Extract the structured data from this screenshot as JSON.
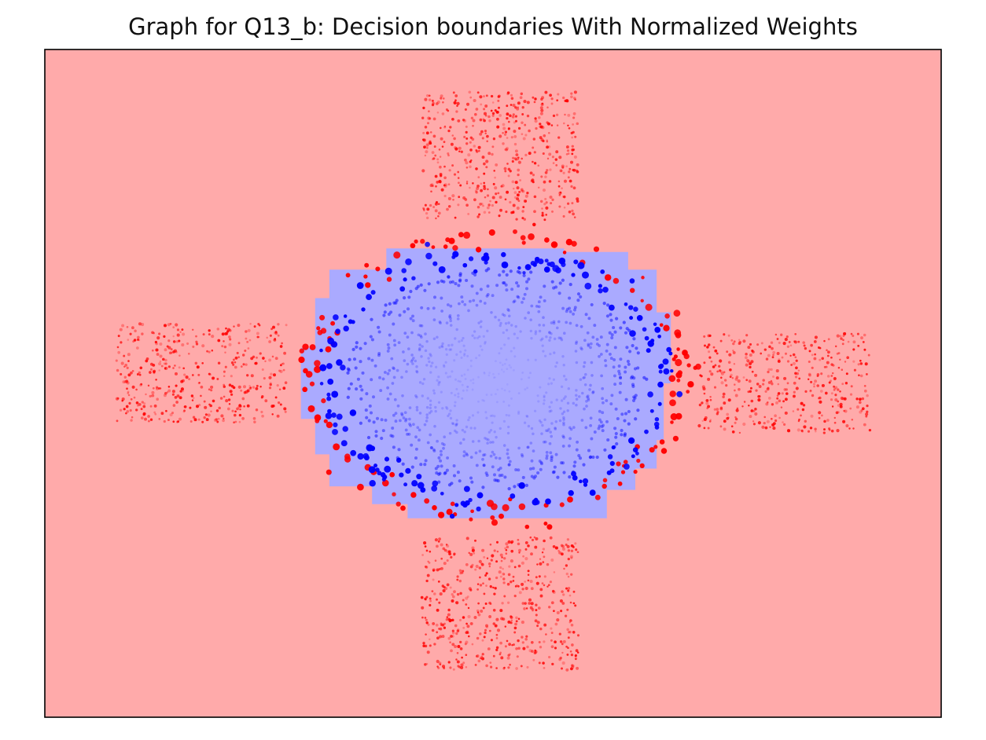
{
  "chart_data": {
    "type": "scatter",
    "title": "Graph for Q13_b: Decision boundaries With Normalized Weights",
    "xlabel": "",
    "ylabel": "",
    "xticks": [],
    "yticks": [],
    "grid": false,
    "legend": "none",
    "xlim": [
      -6.3,
      6.3
    ],
    "ylim": [
      -4.7,
      4.7
    ],
    "regions": {
      "background_class": "red",
      "colors": {
        "red": "#FFAAAA",
        "blue": "#AAAAFF"
      },
      "blue_region_boundary": [
        [
          -1.5,
          1.9
        ],
        [
          1.0,
          1.9
        ],
        [
          1.0,
          1.85
        ],
        [
          1.9,
          1.85
        ],
        [
          1.9,
          1.6
        ],
        [
          2.3,
          1.6
        ],
        [
          2.3,
          1.0
        ],
        [
          2.5,
          1.0
        ],
        [
          2.5,
          0.0
        ],
        [
          2.4,
          0.0
        ],
        [
          2.4,
          -0.8
        ],
        [
          2.3,
          -0.8
        ],
        [
          2.3,
          -1.2
        ],
        [
          2.0,
          -1.2
        ],
        [
          2.0,
          -1.5
        ],
        [
          1.6,
          -1.5
        ],
        [
          1.6,
          -1.9
        ],
        [
          -1.2,
          -1.9
        ],
        [
          -1.2,
          -1.7
        ],
        [
          -1.7,
          -1.7
        ],
        [
          -1.7,
          -1.45
        ],
        [
          -2.3,
          -1.45
        ],
        [
          -2.3,
          -1.0
        ],
        [
          -2.5,
          -1.0
        ],
        [
          -2.5,
          -0.5
        ],
        [
          -2.7,
          -0.5
        ],
        [
          -2.7,
          0.5
        ],
        [
          -2.5,
          0.5
        ],
        [
          -2.5,
          1.2
        ],
        [
          -2.3,
          1.2
        ],
        [
          -2.3,
          1.6
        ],
        [
          -1.5,
          1.6
        ]
      ]
    },
    "series": [
      {
        "label": "red",
        "color": "#FF0000",
        "clusters": [
          {
            "center": [
              0.1,
              3.2
            ],
            "spread": [
              1.1,
              0.9
            ],
            "count": 520
          },
          {
            "center": [
              0.1,
              -3.1
            ],
            "spread": [
              1.1,
              0.95
            ],
            "count": 520
          },
          {
            "center": [
              -4.1,
              0.15
            ],
            "spread": [
              1.2,
              0.7
            ],
            "count": 420
          },
          {
            "center": [
              4.1,
              0.0
            ],
            "spread": [
              1.2,
              0.7
            ],
            "count": 420
          }
        ],
        "boundary_ring": {
          "center": [
            0.05,
            0.1
          ],
          "radius": [
            2.6,
            1.95
          ],
          "count": 140
        }
      },
      {
        "label": "blue",
        "color": "#0000FF",
        "inner_fill": {
          "center": [
            0.05,
            0.05
          ],
          "radius": [
            2.3,
            1.7
          ],
          "count": 900
        },
        "boundary_ring": {
          "center": [
            0.05,
            0.05
          ],
          "radius": [
            2.35,
            1.75
          ],
          "count": 170
        }
      }
    ]
  }
}
